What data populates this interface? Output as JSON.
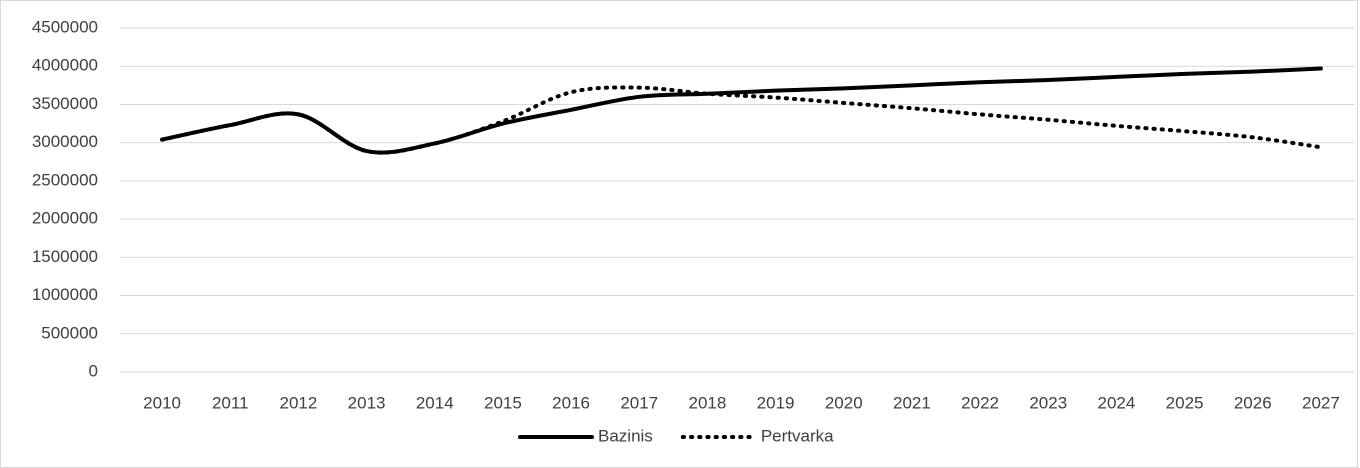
{
  "chart_data": {
    "type": "line",
    "categories": [
      "2010",
      "2011",
      "2012",
      "2013",
      "2014",
      "2015",
      "2016",
      "2017",
      "2018",
      "2019",
      "2020",
      "2021",
      "2022",
      "2023",
      "2024",
      "2025",
      "2026",
      "2027"
    ],
    "series": [
      {
        "name": "Bazinis",
        "color": "#000000",
        "dash": "solid",
        "values": [
          3040000,
          3230000,
          3370000,
          2890000,
          2990000,
          3250000,
          3430000,
          3600000,
          3640000,
          3680000,
          3710000,
          3750000,
          3790000,
          3820000,
          3860000,
          3900000,
          3930000,
          3970000
        ]
      },
      {
        "name": "Pertvarka",
        "color": "#000000",
        "dash": "dotted",
        "values": [
          3040000,
          3230000,
          3370000,
          2890000,
          2990000,
          3280000,
          3660000,
          3720000,
          3640000,
          3590000,
          3520000,
          3450000,
          3370000,
          3300000,
          3220000,
          3150000,
          3070000,
          2940000
        ]
      }
    ],
    "ylim": [
      0,
      4500000
    ],
    "yticks": [
      0,
      500000,
      1000000,
      1500000,
      2000000,
      2500000,
      3000000,
      3500000,
      4000000,
      4500000
    ],
    "grid": true,
    "legend": "bottom"
  }
}
